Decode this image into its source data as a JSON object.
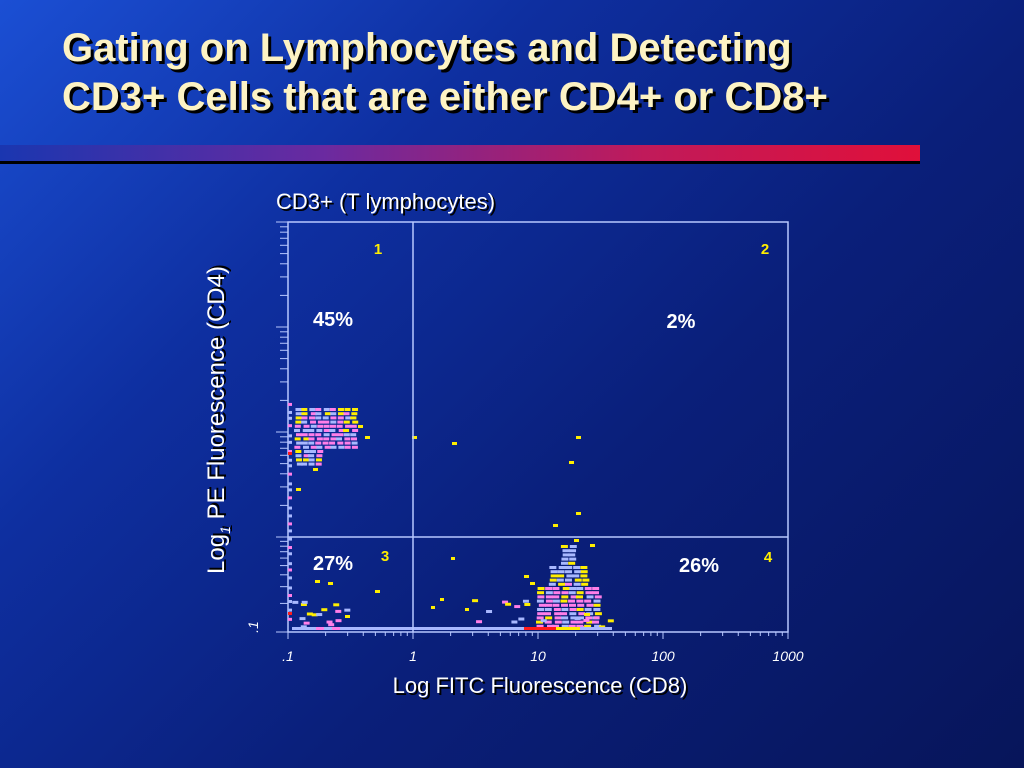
{
  "slide": {
    "title_line1": "Gating on Lymphocytes and Detecting",
    "title_line2": "CD3+ Cells that are either CD4+ or CD8+"
  },
  "colors": {
    "title_text": "#fdf3c4",
    "background": "#0a1f7a",
    "rule_start": "#1a36b0",
    "rule_end": "#e0103a",
    "quadrant_number": "#ffee00",
    "plot_frame": "#b8c8ff",
    "dot_yellow": "#ffee00",
    "dot_light_blue": "#a8b8ff",
    "dot_pink": "#ff7ee8",
    "dot_red": "#ff1a1a"
  },
  "chart_data": {
    "type": "scatter",
    "title": "CD3+ (T lymphocytes)",
    "xlabel": "Log FITC Fluorescence (CD8)",
    "ylabel_main": "Log PE Fluorescence (CD4)",
    "ylabel_sub": "1",
    "x_scale": "log",
    "x_range": [
      0.1,
      1000
    ],
    "x_ticks": [
      ".1",
      "1",
      "10",
      "100",
      "1000"
    ],
    "y_tick_label": ".1",
    "quadrant_cutoffs": {
      "x": 1,
      "y": 10
    },
    "quadrants": [
      {
        "number": "1",
        "percent": "45%",
        "position": "upper-left"
      },
      {
        "number": "2",
        "percent": "2%",
        "position": "upper-right"
      },
      {
        "number": "3",
        "percent": "27%",
        "position": "lower-left"
      },
      {
        "number": "4",
        "percent": "26%",
        "position": "lower-right"
      }
    ]
  }
}
